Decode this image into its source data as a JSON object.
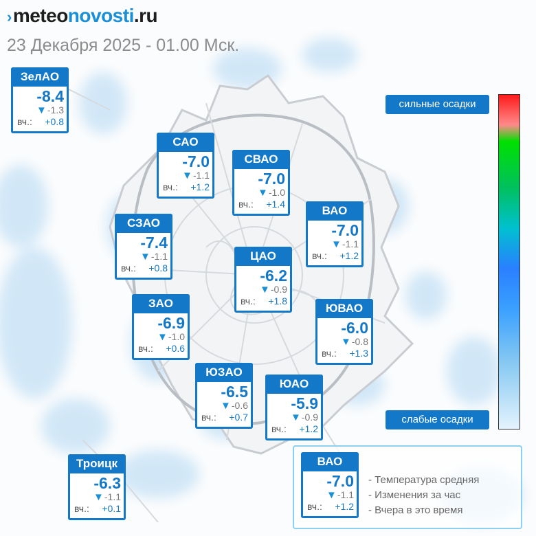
{
  "logo": {
    "mark": "›",
    "part1": "meteo",
    "part2": "novosti",
    "part3": ".ru"
  },
  "date": "23 Декабря 2025 - 01.00 Мск.",
  "districts": [
    {
      "name": "ЗелАО",
      "temp": "-8.4",
      "change": "-1.3",
      "yesterday_label": "вч.:",
      "yesterday": "+0.8"
    },
    {
      "name": "САО",
      "temp": "-7.0",
      "change": "-1.1",
      "yesterday_label": "вч.:",
      "yesterday": "+1.2"
    },
    {
      "name": "СВАО",
      "temp": "-7.0",
      "change": "-1.0",
      "yesterday_label": "вч.:",
      "yesterday": "+1.4"
    },
    {
      "name": "ВАО",
      "temp": "-7.0",
      "change": "-1.1",
      "yesterday_label": "вч.:",
      "yesterday": "+1.2"
    },
    {
      "name": "СЗАО",
      "temp": "-7.4",
      "change": "-1.1",
      "yesterday_label": "вч.:",
      "yesterday": "+0.8"
    },
    {
      "name": "ЦАО",
      "temp": "-6.2",
      "change": "-0.9",
      "yesterday_label": "вч.:",
      "yesterday": "+1.8"
    },
    {
      "name": "ЗАО",
      "temp": "-6.9",
      "change": "-1.0",
      "yesterday_label": "вч.:",
      "yesterday": "+0.6"
    },
    {
      "name": "ЮВАО",
      "temp": "-6.0",
      "change": "-0.8",
      "yesterday_label": "вч.:",
      "yesterday": "+1.3"
    },
    {
      "name": "ЮЗАО",
      "temp": "-6.5",
      "change": "-0.6",
      "yesterday_label": "вч.:",
      "yesterday": "+0.7"
    },
    {
      "name": "ЮАО",
      "temp": "-5.9",
      "change": "-0.9",
      "yesterday_label": "вч.:",
      "yesterday": "+1.2"
    },
    {
      "name": "Троицк",
      "temp": "-6.3",
      "change": "-1.1",
      "yesterday_label": "вч.:",
      "yesterday": "+0.1"
    }
  ],
  "scale": {
    "top_label": "сильные осадки",
    "bottom_label": "слабые осадки"
  },
  "legend": {
    "sample": {
      "name": "ВАО",
      "temp": "-7.0",
      "change": "-1.1",
      "yesterday_label": "вч.:",
      "yesterday": "+1.2"
    },
    "items": [
      "- Температура средняя",
      "- Изменения за час",
      "- Вчера в это время"
    ]
  },
  "colors": {
    "accent": "#1478c8",
    "precip_light": "#cfe6f7"
  }
}
